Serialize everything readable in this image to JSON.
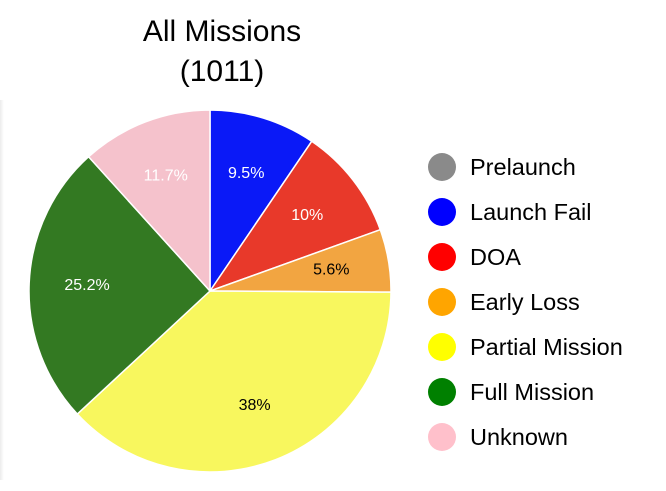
{
  "chart_data": {
    "type": "pie",
    "title": "All Missions",
    "subtitle": "(1011)",
    "legend_position": "right",
    "start": "top",
    "direction": "clockwise",
    "slices": [
      {
        "label": "Prelaunch",
        "value": 0,
        "value_label": "",
        "color": "#888888",
        "label_color": "#ffffff"
      },
      {
        "label": "Launch Fail",
        "value": 9.5,
        "value_label": "9.5%",
        "color": "#0a19f7",
        "label_color": "#ffffff"
      },
      {
        "label": "DOA",
        "value": 10,
        "value_label": "10%",
        "color": "#e8392a",
        "label_color": "#ffffff"
      },
      {
        "label": "Early Loss",
        "value": 5.6,
        "value_label": "5.6%",
        "color": "#f2a541",
        "label_color": "#000000"
      },
      {
        "label": "Partial Mission",
        "value": 38,
        "value_label": "38%",
        "color": "#f8f75e",
        "label_color": "#000000"
      },
      {
        "label": "Full Mission",
        "value": 25.2,
        "value_label": "25.2%",
        "color": "#337922",
        "label_color": "#ffffff"
      },
      {
        "label": "Unknown",
        "value": 11.7,
        "value_label": "11.7%",
        "color": "#f5c2cc",
        "label_color": "#ffffff"
      }
    ],
    "legend": [
      {
        "label": "Prelaunch",
        "color": "#8a8a8a"
      },
      {
        "label": "Launch Fail",
        "color": "#0000ff"
      },
      {
        "label": "DOA",
        "color": "#ff0000"
      },
      {
        "label": "Early Loss",
        "color": "#ffa500"
      },
      {
        "label": "Partial Mission",
        "color": "#ffff00"
      },
      {
        "label": "Full Mission",
        "color": "#008000"
      },
      {
        "label": "Unknown",
        "color": "#ffc0cb"
      }
    ]
  }
}
